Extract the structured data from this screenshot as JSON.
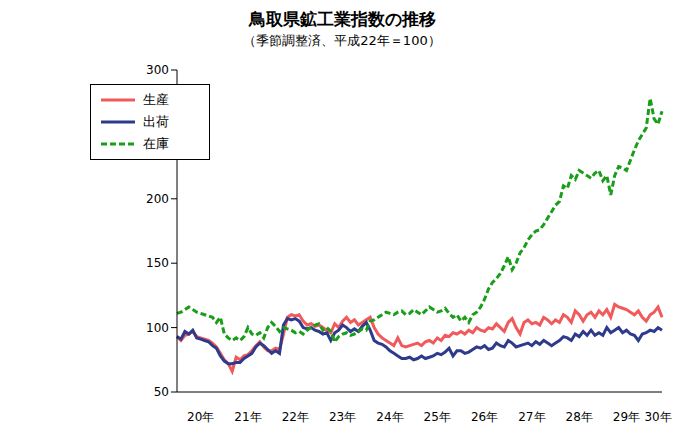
{
  "chart_data": {
    "type": "line",
    "title": "鳥取県鉱工業指数の推移",
    "subtitle": "（季節調整済、平成22年＝100）",
    "categories": [
      null,
      null,
      null,
      null,
      null,
      null,
      "20年",
      null,
      null,
      null,
      null,
      null,
      null,
      null,
      null,
      null,
      null,
      null,
      "21年",
      null,
      null,
      null,
      null,
      null,
      null,
      null,
      null,
      null,
      null,
      null,
      "22年",
      null,
      null,
      null,
      null,
      null,
      null,
      null,
      null,
      null,
      null,
      null,
      "23年",
      null,
      null,
      null,
      null,
      null,
      null,
      null,
      null,
      null,
      null,
      null,
      "24年",
      null,
      null,
      null,
      null,
      null,
      null,
      null,
      null,
      null,
      null,
      null,
      "25年",
      null,
      null,
      null,
      null,
      null,
      null,
      null,
      null,
      null,
      null,
      null,
      "26年",
      null,
      null,
      null,
      null,
      null,
      null,
      null,
      null,
      null,
      null,
      null,
      "27年",
      null,
      null,
      null,
      null,
      null,
      null,
      null,
      null,
      null,
      null,
      null,
      "28年",
      null,
      null,
      null,
      null,
      null,
      null,
      null,
      null,
      null,
      null,
      null,
      "29年",
      null,
      null,
      null,
      null,
      null,
      null,
      null,
      "30年",
      null
    ],
    "series": [
      {
        "name": "生産",
        "color": "#f05a5a",
        "line_style": "solid",
        "values": [
          93,
          90,
          94,
          95,
          97,
          93,
          92,
          91,
          90,
          88,
          85,
          80,
          75,
          72,
          66,
          77,
          75,
          78,
          79,
          82,
          86,
          89,
          85,
          82,
          82,
          84,
          83,
          95,
          108,
          110,
          109,
          110,
          105,
          102,
          103,
          101,
          102,
          100,
          98,
          96,
          103,
          100,
          105,
          108,
          104,
          106,
          102,
          104,
          106,
          108,
          100,
          95,
          92,
          90,
          88,
          86,
          92,
          86,
          85,
          86,
          87,
          88,
          86,
          89,
          90,
          88,
          92,
          90,
          94,
          93,
          96,
          95,
          97,
          95,
          98,
          96,
          100,
          98,
          97,
          100,
          99,
          103,
          100,
          97,
          104,
          107,
          100,
          95,
          104,
          106,
          103,
          104,
          102,
          108,
          106,
          103,
          106,
          104,
          110,
          108,
          104,
          113,
          110,
          105,
          110,
          112,
          108,
          113,
          110,
          114,
          108,
          118,
          116,
          115,
          114,
          112,
          110,
          113,
          108,
          105,
          110,
          112,
          116,
          108
        ]
      },
      {
        "name": "出荷",
        "color": "#2e3a8c",
        "line_style": "solid",
        "values": [
          93,
          91,
          97,
          95,
          98,
          92,
          91,
          90,
          89,
          86,
          84,
          78,
          74,
          72,
          72,
          73,
          73,
          76,
          78,
          80,
          85,
          88,
          86,
          83,
          80,
          82,
          80,
          102,
          107,
          106,
          107,
          105,
          100,
          99,
          100,
          98,
          97,
          95,
          96,
          90,
          96,
          98,
          102,
          100,
          97,
          99,
          97,
          101,
          104,
          98,
          90,
          88,
          87,
          85,
          82,
          80,
          78,
          76,
          76,
          77,
          75,
          76,
          78,
          76,
          77,
          78,
          80,
          79,
          81,
          84,
          78,
          82,
          82,
          80,
          81,
          83,
          85,
          84,
          86,
          83,
          84,
          88,
          86,
          85,
          90,
          88,
          85,
          86,
          87,
          88,
          86,
          89,
          87,
          90,
          88,
          86,
          88,
          90,
          93,
          92,
          90,
          95,
          93,
          97,
          94,
          98,
          94,
          96,
          94,
          100,
          96,
          98,
          100,
          96,
          98,
          95,
          94,
          90,
          95,
          96,
          98,
          97,
          100,
          98
        ]
      },
      {
        "name": "在庫",
        "color": "#1a9e1a",
        "line_style": "dashed",
        "values": [
          111,
          112,
          114,
          116,
          114,
          112,
          111,
          110,
          109,
          108,
          104,
          108,
          95,
          92,
          90,
          92,
          90,
          93,
          100,
          95,
          94,
          96,
          92,
          100,
          104,
          101,
          97,
          100,
          99,
          98,
          96,
          97,
          95,
          98,
          100,
          102,
          103,
          98,
          100,
          97,
          89,
          93,
          95,
          96,
          94,
          95,
          97,
          99,
          98,
          105,
          106,
          108,
          110,
          112,
          111,
          110,
          112,
          113,
          110,
          111,
          114,
          112,
          110,
          113,
          116,
          114,
          112,
          113,
          115,
          111,
          108,
          110,
          105,
          108,
          104,
          110,
          112,
          116,
          122,
          130,
          135,
          138,
          142,
          148,
          155,
          145,
          150,
          158,
          162,
          168,
          172,
          175,
          176,
          180,
          185,
          190,
          195,
          198,
          210,
          208,
          218,
          215,
          222,
          220,
          218,
          216,
          220,
          222,
          214,
          218,
          203,
          218,
          225,
          224,
          222,
          230,
          238,
          245,
          250,
          255,
          278,
          262,
          258,
          268
        ]
      }
    ],
    "ylim": [
      50,
      300
    ],
    "yticks": [
      50,
      100,
      150,
      200,
      250,
      300
    ],
    "grid": false,
    "legend": "upper left"
  }
}
